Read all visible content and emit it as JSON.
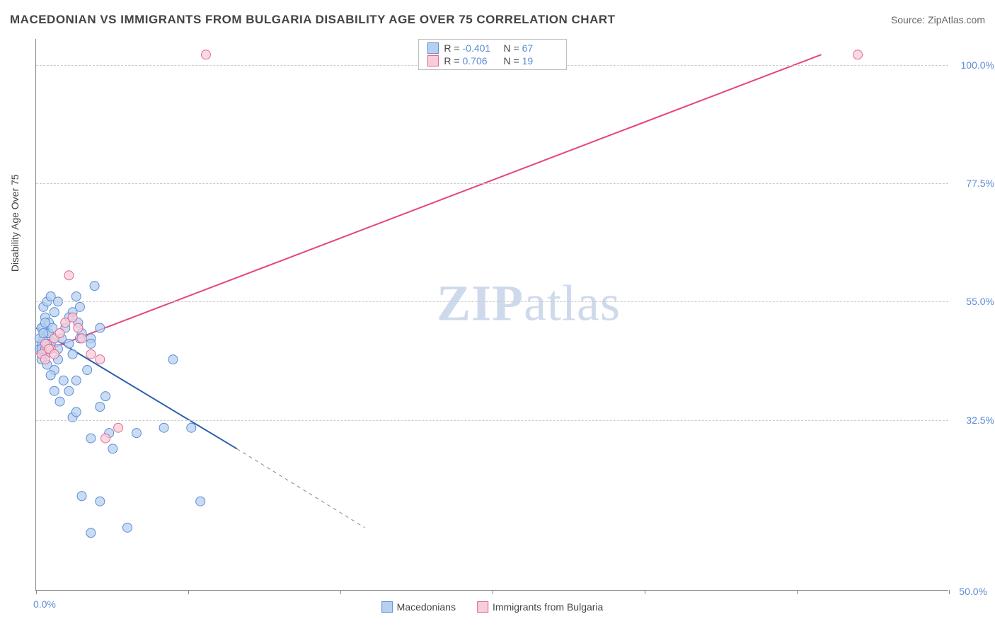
{
  "title": "MACEDONIAN VS IMMIGRANTS FROM BULGARIA DISABILITY AGE OVER 75 CORRELATION CHART",
  "source_label": "Source: ",
  "source_value": "ZipAtlas.com",
  "y_axis_title": "Disability Age Over 75",
  "watermark": "ZIPatlas",
  "chart": {
    "type": "scatter-with-regression",
    "background_color": "#ffffff",
    "grid_color": "#cccccc",
    "axis_color": "#888888",
    "label_color": "#5b8dd6",
    "xlim": [
      0,
      50
    ],
    "ylim": [
      0,
      105
    ],
    "x_ticks": [
      0,
      8.33,
      16.67,
      25,
      33.33,
      41.67,
      50
    ],
    "x_tick_labels_start": "0.0%",
    "x_tick_labels_end": "50.0%",
    "y_gridlines": [
      32.5,
      55.0,
      77.5,
      100.0
    ],
    "y_tick_labels": [
      "32.5%",
      "55.0%",
      "77.5%",
      "100.0%"
    ],
    "series": [
      {
        "name": "Macedonians",
        "marker_fill": "#b8d0ef",
        "marker_stroke": "#5b8dd6",
        "line_color": "#2b5fb0",
        "r_value": "-0.401",
        "n_value": "67",
        "points": [
          [
            0.2,
            46
          ],
          [
            0.3,
            47
          ],
          [
            0.4,
            48
          ],
          [
            0.5,
            45
          ],
          [
            0.6,
            49
          ],
          [
            0.4,
            50
          ],
          [
            0.8,
            47
          ],
          [
            1.0,
            48
          ],
          [
            1.2,
            46
          ],
          [
            0.3,
            44
          ],
          [
            0.5,
            52
          ],
          [
            0.7,
            51
          ],
          [
            1.4,
            48
          ],
          [
            1.6,
            50
          ],
          [
            2.0,
            53
          ],
          [
            2.2,
            56
          ],
          [
            2.4,
            54
          ],
          [
            1.0,
            42
          ],
          [
            1.2,
            44
          ],
          [
            1.5,
            40
          ],
          [
            1.8,
            47
          ],
          [
            2.0,
            45
          ],
          [
            2.5,
            49
          ],
          [
            3.0,
            48
          ],
          [
            3.2,
            58
          ],
          [
            3.0,
            47
          ],
          [
            3.5,
            50
          ],
          [
            0.6,
            43
          ],
          [
            0.8,
            41
          ],
          [
            1.0,
            38
          ],
          [
            1.3,
            36
          ],
          [
            1.8,
            38
          ],
          [
            2.2,
            40
          ],
          [
            2.8,
            42
          ],
          [
            2.0,
            33
          ],
          [
            2.2,
            34
          ],
          [
            3.5,
            35
          ],
          [
            3.8,
            37
          ],
          [
            3.0,
            29
          ],
          [
            4.2,
            27
          ],
          [
            4.0,
            30
          ],
          [
            5.5,
            30
          ],
          [
            7.0,
            31
          ],
          [
            8.5,
            31
          ],
          [
            2.5,
            18
          ],
          [
            3.5,
            17
          ],
          [
            5.0,
            12
          ],
          [
            9.0,
            17
          ],
          [
            3.0,
            11
          ],
          [
            0.4,
            54
          ],
          [
            0.6,
            55
          ],
          [
            0.8,
            56
          ],
          [
            1.0,
            53
          ],
          [
            1.2,
            55
          ],
          [
            0.3,
            50
          ],
          [
            0.5,
            51
          ],
          [
            0.7,
            49
          ],
          [
            0.9,
            50
          ],
          [
            1.8,
            52
          ],
          [
            2.3,
            51
          ],
          [
            2.4,
            48
          ],
          [
            0.2,
            48
          ],
          [
            0.3,
            46
          ],
          [
            0.4,
            49
          ],
          [
            7.5,
            44
          ],
          [
            0.5,
            46
          ],
          [
            0.6,
            47
          ]
        ],
        "regression": {
          "x1": 0,
          "y1": 50,
          "x2": 11,
          "y2": 27,
          "dashed_extension_x2": 18,
          "dashed_extension_y2": 12
        }
      },
      {
        "name": "Immigrants from Bulgaria",
        "marker_fill": "#f7cdd9",
        "marker_stroke": "#e56690",
        "line_color": "#e5447f",
        "r_value": "0.706",
        "n_value": "19",
        "points": [
          [
            0.3,
            45
          ],
          [
            0.5,
            47
          ],
          [
            0.8,
            46
          ],
          [
            1.0,
            48
          ],
          [
            1.3,
            49
          ],
          [
            1.6,
            51
          ],
          [
            1.8,
            60
          ],
          [
            2.0,
            52
          ],
          [
            2.3,
            50
          ],
          [
            2.5,
            48
          ],
          [
            3.0,
            45
          ],
          [
            3.5,
            44
          ],
          [
            4.5,
            31
          ],
          [
            3.8,
            29
          ],
          [
            0.5,
            44
          ],
          [
            0.7,
            46
          ],
          [
            1.0,
            45
          ],
          [
            9.3,
            102
          ],
          [
            45,
            102
          ]
        ],
        "regression": {
          "x1": 0,
          "y1": 45,
          "x2": 43,
          "y2": 102
        }
      }
    ],
    "stats_labels": {
      "r_prefix": "R = ",
      "n_prefix": "N = "
    },
    "marker_radius": 6.5,
    "marker_opacity": 0.75,
    "line_width": 2
  }
}
